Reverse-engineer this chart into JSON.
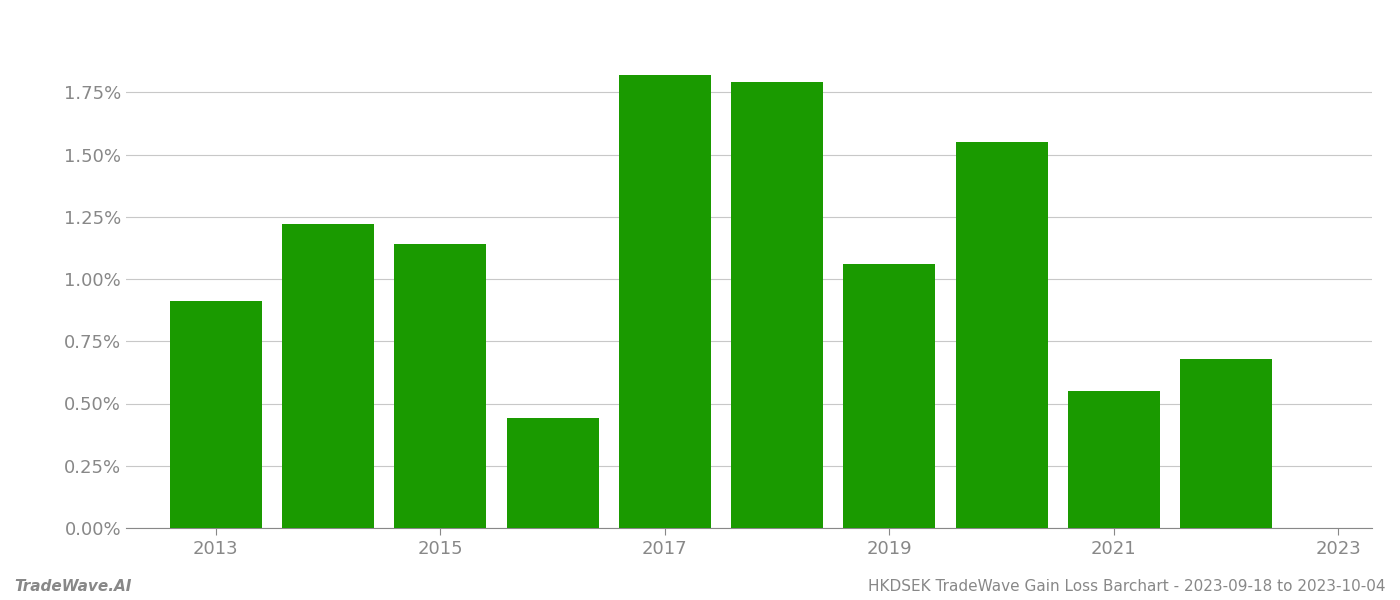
{
  "years": [
    2013,
    2014,
    2015,
    2016,
    2017,
    2018,
    2019,
    2020,
    2021,
    2022
  ],
  "values": [
    0.0091,
    0.0122,
    0.0114,
    0.0044,
    0.0182,
    0.0179,
    0.0106,
    0.0155,
    0.0055,
    0.0068
  ],
  "bar_color": "#1a9a00",
  "background_color": "#ffffff",
  "grid_color": "#c8c8c8",
  "footer_left": "TradeWave.AI",
  "footer_right": "HKDSEK TradeWave Gain Loss Barchart - 2023-09-18 to 2023-10-04",
  "ylim": [
    0,
    0.02
  ],
  "yticks": [
    0.0,
    0.0025,
    0.005,
    0.0075,
    0.01,
    0.0125,
    0.015,
    0.0175
  ],
  "ytick_labels": [
    "0.00%",
    "0.25%",
    "0.50%",
    "0.75%",
    "1.00%",
    "1.25%",
    "1.50%",
    "1.75%"
  ],
  "xtick_positions": [
    2013,
    2015,
    2017,
    2019,
    2021,
    2023
  ],
  "xtick_labels": [
    "2013",
    "2015",
    "2017",
    "2019",
    "2021",
    "2023"
  ],
  "footer_fontsize": 11,
  "tick_fontsize": 13,
  "axis_color": "#888888",
  "bar_width": 0.82
}
